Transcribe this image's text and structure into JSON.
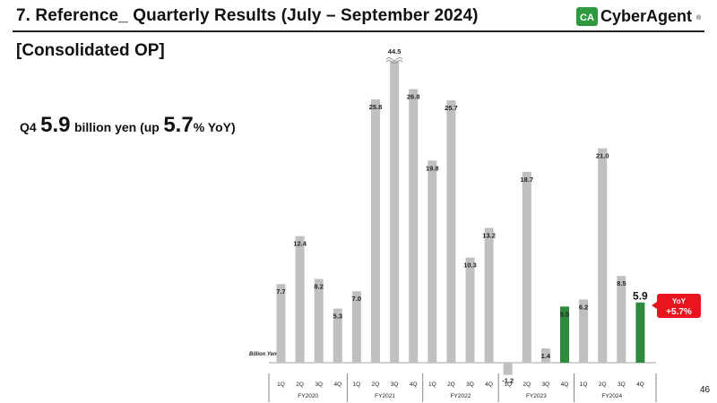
{
  "header": {
    "title": "7. Reference_ Quarterly Results (July – September 2024)",
    "logo_text": "CyberAgent",
    "logo_mark": "CA",
    "logo_registered": "®"
  },
  "subtitle": "[Consolidated OP]",
  "headline": {
    "prefix": "Q4",
    "value": "5.9",
    "mid": "billion yen (up",
    "yoy_value": "5.7",
    "suffix": "% YoY)"
  },
  "page_number": "46",
  "colors": {
    "bar": "#c0c0c0",
    "highlight": "#2e8b3e",
    "callout": "#e8141e"
  },
  "chart_data": {
    "type": "bar",
    "unit_label": "Billion Yen",
    "categories": [
      "1Q",
      "2Q",
      "3Q",
      "4Q",
      "1Q",
      "2Q",
      "3Q",
      "4Q",
      "1Q",
      "2Q",
      "3Q",
      "4Q",
      "1Q",
      "2Q",
      "3Q",
      "4Q",
      "1Q",
      "2Q",
      "3Q",
      "4Q"
    ],
    "values": [
      7.7,
      12.4,
      8.2,
      5.3,
      7.0,
      25.8,
      44.5,
      26.8,
      19.8,
      25.7,
      10.3,
      13.2,
      -1.2,
      18.7,
      1.4,
      5.5,
      6.2,
      21.0,
      8.5,
      5.9
    ],
    "value_labels": [
      "7.7",
      "12.4",
      "8.2",
      "5.3",
      "7.0",
      "25.8",
      "44.5",
      "26.8",
      "19.8",
      "25.7",
      "10.3",
      "13.2",
      "-1.2",
      "18.7",
      "1.4",
      "5.5",
      "6.2",
      "21.0",
      "8.5",
      "5.9"
    ],
    "highlighted": [
      15,
      19
    ],
    "broken_axis_bars": [
      6
    ],
    "groups": [
      {
        "name": "FY2020",
        "start": 0,
        "count": 4
      },
      {
        "name": "FY2021",
        "start": 4,
        "count": 4
      },
      {
        "name": "FY2022",
        "start": 8,
        "count": 4
      },
      {
        "name": "FY2023",
        "start": 12,
        "count": 4
      },
      {
        "name": "FY2024",
        "start": 16,
        "count": 4
      }
    ],
    "callout": {
      "bar_index": 19,
      "line1": "YoY",
      "line2": "+5.7%"
    }
  }
}
